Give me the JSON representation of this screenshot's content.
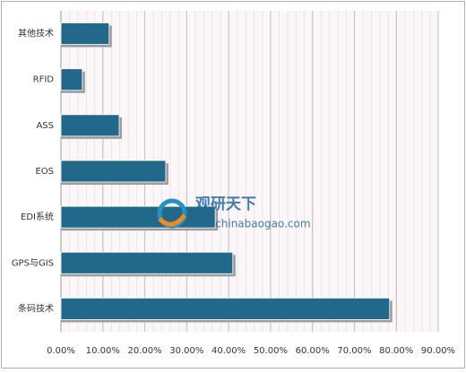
{
  "chart_data": {
    "type": "hbar",
    "categories": [
      "其他技术",
      "RFID",
      "ASS",
      "EOS",
      "EDI系统",
      "GPS与GIS",
      "条码技术"
    ],
    "values": [
      11.5,
      5.1,
      13.9,
      25.0,
      36.8,
      41.0,
      78.4
    ],
    "color": "#22688a",
    "xlim": [
      0,
      90
    ],
    "xticks": [
      {
        "value": 0,
        "label": "0.00%"
      },
      {
        "value": 10,
        "label": "10.00%"
      },
      {
        "value": 20,
        "label": "20.00%"
      },
      {
        "value": 30,
        "label": "30.00%"
      },
      {
        "value": 40,
        "label": "40.00%"
      },
      {
        "value": 50,
        "label": "50.00%"
      },
      {
        "value": 60,
        "label": "60.00%"
      },
      {
        "value": 70,
        "label": "70.00%"
      },
      {
        "value": 80,
        "label": "80.00%"
      },
      {
        "value": 90,
        "label": "90.00%"
      }
    ],
    "grid": true,
    "watermark": {
      "brand": "观研天下",
      "url": "www.chinabaogao.com"
    }
  }
}
